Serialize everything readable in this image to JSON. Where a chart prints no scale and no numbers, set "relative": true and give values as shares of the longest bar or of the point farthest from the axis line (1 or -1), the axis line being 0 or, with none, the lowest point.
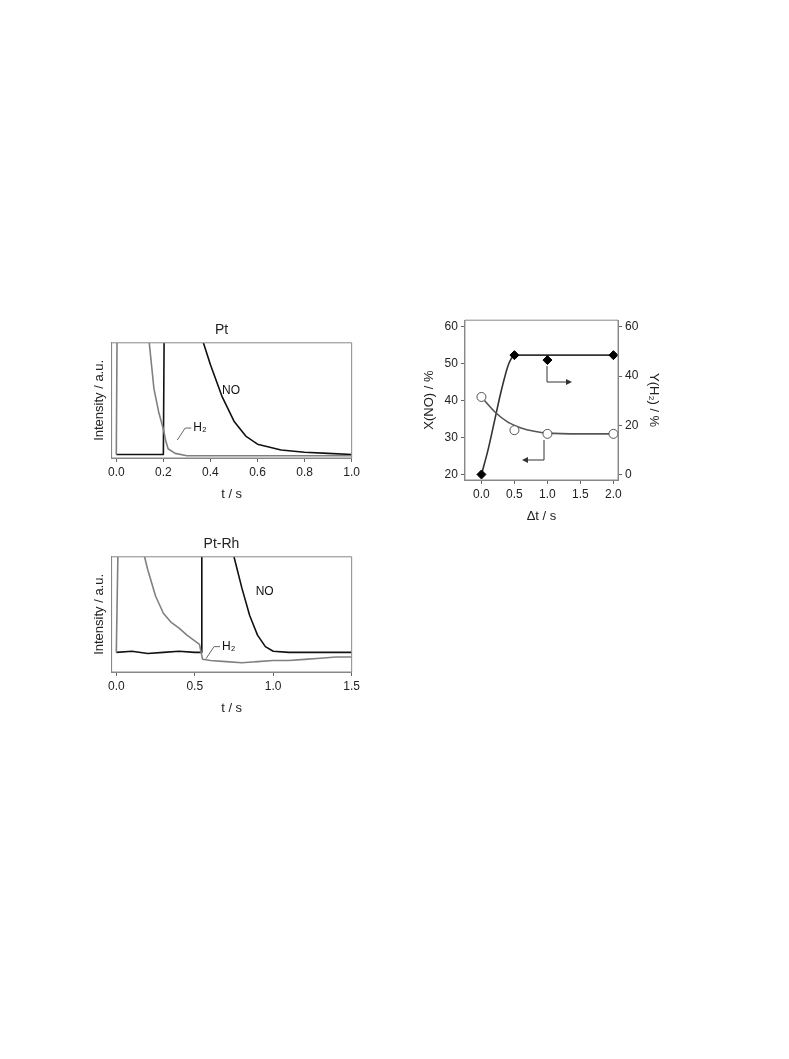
{
  "chart_data": [
    {
      "type": "line",
      "title": "Pt",
      "xlabel": "t / s",
      "ylabel": "Intensity / a.u.",
      "relative": true,
      "tick_labels": "x",
      "xlim": [
        -0.02,
        1.0
      ],
      "xticks": [
        {
          "value": 0,
          "label": "0.0"
        },
        0.2,
        0.4,
        0.6,
        0.8,
        {
          "value": 1,
          "label": "1.0"
        }
      ],
      "grid": false,
      "legend": false,
      "marker": "none",
      "line_style": "solid",
      "series": [
        {
          "color": "#808080",
          "x": [
            0,
            0.003,
            0.01,
            0.14,
            0.16,
            0.18,
            0.2,
            0.21,
            0.22,
            0.25,
            0.3,
            0.5,
            0.7,
            1.0
          ],
          "values": [
            0.03,
            1,
            null,
            1,
            0.6,
            0.4,
            0.25,
            0.15,
            0.08,
            0.04,
            0.02,
            0.02,
            0.02,
            0.02
          ]
        },
        {
          "color": "#111111",
          "x": [
            0,
            0.1,
            0.2,
            0.203,
            0.21,
            0.37,
            0.4,
            0.45,
            0.5,
            0.55,
            0.6,
            0.7,
            0.8,
            0.9,
            1.0
          ],
          "values": [
            0.03,
            0.03,
            0.03,
            1,
            null,
            1,
            0.81,
            0.53,
            0.32,
            0.19,
            0.12,
            0.07,
            0.05,
            0.04,
            0.03
          ]
        }
      ],
      "annotations": [
        "NO",
        "H₂"
      ]
    },
    {
      "type": "line",
      "title": "Pt-Rh",
      "xlabel": "t / s",
      "ylabel": "Intensity / a.u.",
      "relative": true,
      "tick_labels": "x",
      "xlim": [
        -0.03,
        1.5
      ],
      "xticks": [
        {
          "value": 0,
          "label": "0.0"
        },
        0.5,
        {
          "value": 1,
          "label": "1.0"
        },
        1.5
      ],
      "grid": false,
      "legend": false,
      "marker": "none",
      "line_style": "solid",
      "series": [
        {
          "color": "#808080",
          "x": [
            0,
            0.01,
            0.02,
            0.18,
            0.2,
            0.25,
            0.3,
            0.35,
            0.4,
            0.45,
            0.5,
            0.53,
            0.55,
            0.6,
            0.7,
            0.8,
            0.9,
            1.0,
            1.1,
            1.2,
            1.3,
            1.4,
            1.5
          ],
          "values": [
            0.17,
            1,
            null,
            1,
            0.89,
            0.66,
            0.51,
            0.43,
            0.38,
            0.32,
            0.27,
            0.24,
            0.11,
            0.1,
            0.09,
            0.08,
            0.09,
            0.1,
            0.1,
            0.11,
            0.12,
            0.13,
            0.13
          ]
        },
        {
          "color": "#111111",
          "x": [
            0,
            0.1,
            0.2,
            0.3,
            0.4,
            0.5,
            0.54,
            0.545,
            0.55,
            0.75,
            0.8,
            0.85,
            0.9,
            0.95,
            1.0,
            1.1,
            1.2,
            1.3,
            1.4,
            1.5
          ],
          "values": [
            0.17,
            0.18,
            0.16,
            0.17,
            0.18,
            0.17,
            0.17,
            1,
            null,
            1,
            0.73,
            0.49,
            0.32,
            0.22,
            0.18,
            0.17,
            0.17,
            0.17,
            0.17,
            0.17
          ]
        }
      ],
      "annotations": [
        "NO",
        "H₂"
      ]
    },
    {
      "type": "scatter",
      "xlabel": "Δt / s",
      "ylabel": "X(NO) / %",
      "y2label": "Y(H₂) / %",
      "xlim": [
        -0.25,
        2.07
      ],
      "xticks": [
        {
          "value": 0,
          "label": "0.0"
        },
        0.5,
        {
          "value": 1,
          "label": "1.0"
        },
        1.5,
        {
          "value": 2,
          "label": "2.0"
        }
      ],
      "ylim": [
        18.5,
        61.8
      ],
      "yticks": [
        20,
        30,
        40,
        50,
        60
      ],
      "y2lim": [
        -2.25,
        62.7
      ],
      "y2ticks": [
        0,
        20,
        40,
        60
      ],
      "grid": false,
      "legend": false,
      "series": [
        {
          "type": "line",
          "color": "#555555",
          "marker": "none",
          "x": [
            0,
            0.2,
            0.4,
            0.6,
            0.8,
            1.0,
            1.5,
            2.0
          ],
          "values": [
            41,
            37,
            34.2,
            32.6,
            31.7,
            31.2,
            31,
            31
          ]
        },
        {
          "type": "line",
          "color": "#333333",
          "marker": "none",
          "axis": "y2",
          "x": [
            0,
            0.1,
            0.2,
            0.3,
            0.4,
            0.45,
            0.5,
            1.0,
            2.0
          ],
          "values": [
            0,
            10,
            22,
            34,
            44,
            47,
            48.5,
            48.5,
            48.5
          ]
        },
        {
          "color": "#555555",
          "marker": "circle",
          "x": [
            0,
            0.5,
            1.0,
            2.0
          ],
          "values": [
            41,
            32,
            31,
            31
          ]
        },
        {
          "color": "#000000",
          "marker": "diamond",
          "axis": "y2",
          "x": [
            0,
            0.5,
            1.0,
            2.0
          ],
          "values": [
            0,
            48.5,
            46.5,
            48.5
          ]
        }
      ]
    }
  ]
}
